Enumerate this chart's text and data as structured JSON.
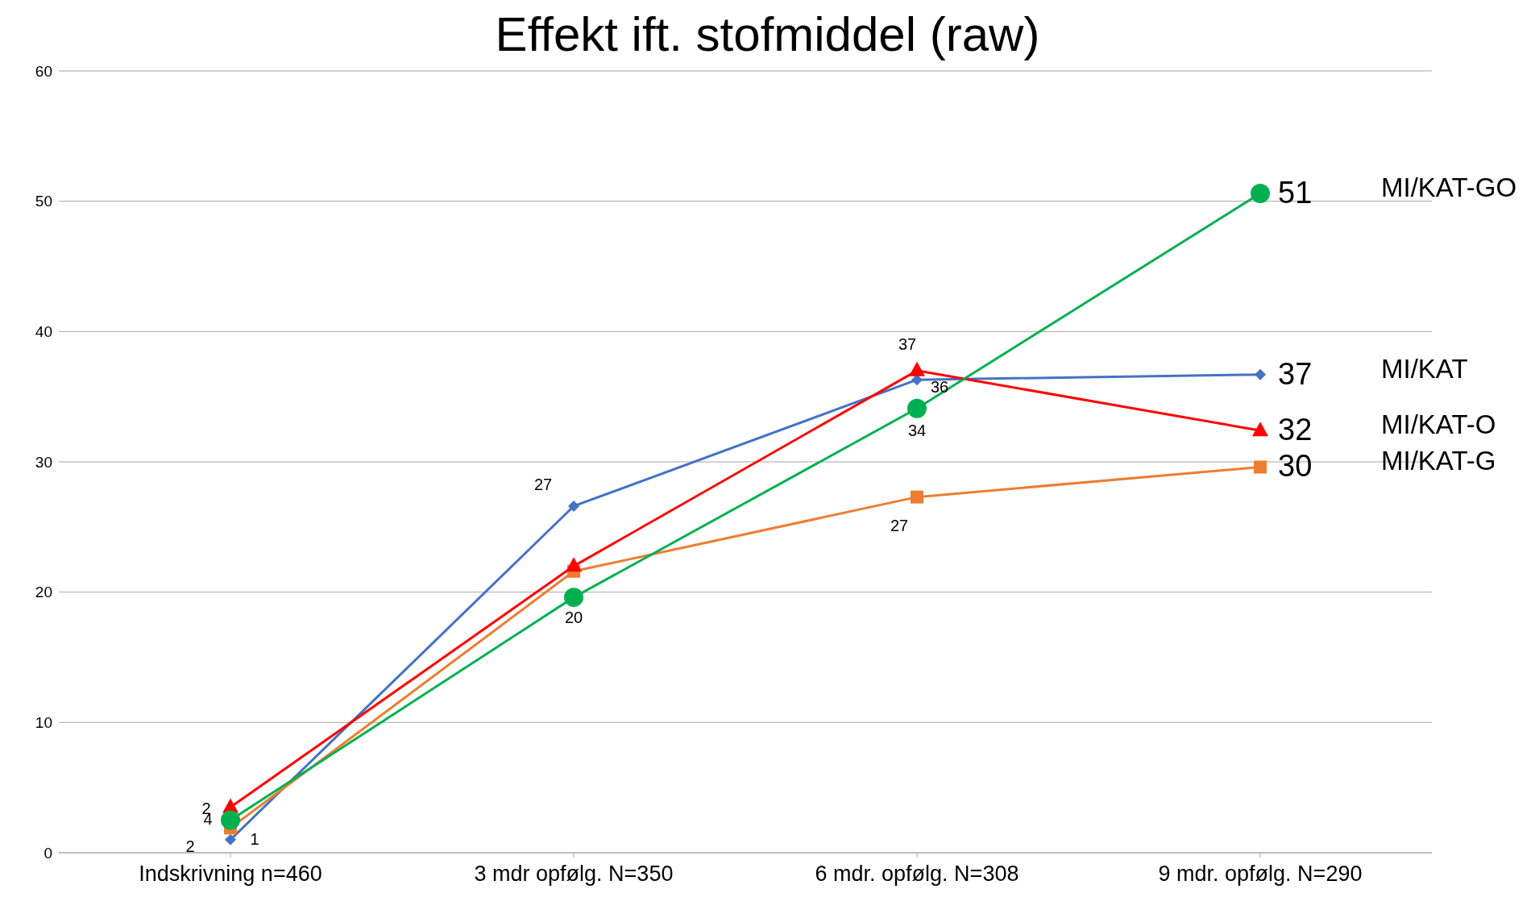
{
  "chart_data": {
    "type": "line",
    "title": "Effekt ift. stofmiddel (raw)",
    "categories": [
      "Indskrivning     n=460",
      "3 mdr opfølg.  N=350",
      "6 mdr. opfølg.  N=308",
      "9 mdr. opfølg.   N=290"
    ],
    "series": [
      {
        "name": "MI/KAT",
        "color": "#4472c4",
        "marker": "diamond",
        "values": [
          1.0,
          26.6,
          36.3,
          36.7
        ],
        "value_labels": [
          "1",
          "27",
          "36",
          "37"
        ]
      },
      {
        "name": "MI/KAT-G",
        "color": "#ed7d31",
        "marker": "square",
        "values": [
          1.9,
          21.6,
          27.3,
          29.6
        ],
        "value_labels": [
          "2",
          null,
          "27",
          "30"
        ]
      },
      {
        "name": "MI/KAT-O",
        "color": "#ff0000",
        "marker": "triangle",
        "values": [
          3.5,
          22.0,
          37.0,
          32.4
        ],
        "value_labels": [
          "4",
          null,
          "37",
          "32"
        ]
      },
      {
        "name": "MI/KAT-GO",
        "color": "#00b050",
        "marker": "circle",
        "values": [
          2.5,
          19.6,
          34.1,
          50.6
        ],
        "value_labels": [
          "2",
          "20",
          "34",
          "51"
        ]
      }
    ],
    "ylim": [
      0,
      60
    ],
    "yticks": [
      0,
      10,
      20,
      30,
      40,
      50,
      60
    ],
    "grid": "y",
    "line_style": "solid"
  }
}
